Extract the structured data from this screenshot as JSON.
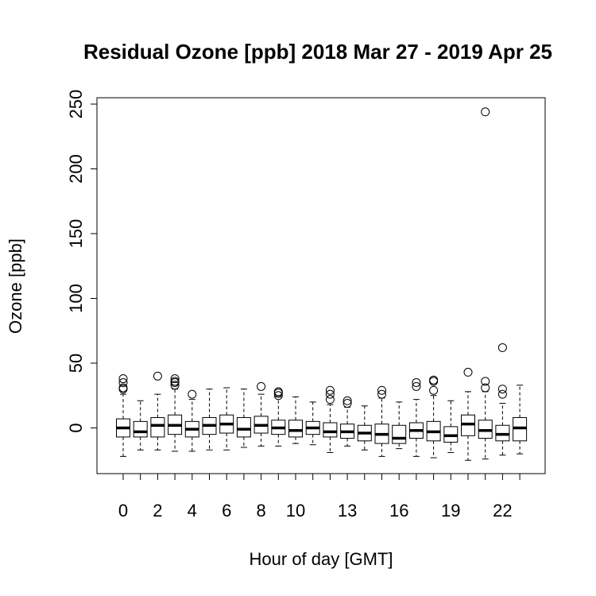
{
  "chart_data": {
    "type": "boxplot",
    "title": "Residual Ozone [ppb] 2018 Mar 27 - 2019 Apr 25",
    "xlabel": "Hour of day [GMT]",
    "ylabel": "Ozone [ppb]",
    "ylim": [
      -35,
      255
    ],
    "yticks": [
      0,
      50,
      100,
      150,
      200,
      250
    ],
    "x_tick_labels": [
      {
        "hour": 0,
        "label": "0"
      },
      {
        "hour": 2,
        "label": "2"
      },
      {
        "hour": 4,
        "label": "4"
      },
      {
        "hour": 6,
        "label": "6"
      },
      {
        "hour": 8,
        "label": "8"
      },
      {
        "hour": 10,
        "label": "10"
      },
      {
        "hour": 13,
        "label": "13"
      },
      {
        "hour": 16,
        "label": "16"
      },
      {
        "hour": 19,
        "label": "19"
      },
      {
        "hour": 22,
        "label": "22"
      }
    ],
    "boxes": [
      {
        "hour": 0,
        "whisker_low": -22,
        "q1": -7,
        "median": 0,
        "q3": 7,
        "whisker_high": 26,
        "outliers": [
          30,
          31,
          35,
          38
        ]
      },
      {
        "hour": 1,
        "whisker_low": -17,
        "q1": -7,
        "median": -3,
        "q3": 5,
        "whisker_high": 21,
        "outliers": []
      },
      {
        "hour": 2,
        "whisker_low": -17,
        "q1": -7,
        "median": 2,
        "q3": 8,
        "whisker_high": 26,
        "outliers": [
          40
        ]
      },
      {
        "hour": 3,
        "whisker_low": -18,
        "q1": -5,
        "median": 2,
        "q3": 10,
        "whisker_high": 30,
        "outliers": [
          33,
          35,
          36,
          38
        ]
      },
      {
        "hour": 4,
        "whisker_low": -18,
        "q1": -7,
        "median": -1,
        "q3": 5,
        "whisker_high": 22,
        "outliers": [
          26
        ]
      },
      {
        "hour": 5,
        "whisker_low": -17,
        "q1": -5,
        "median": 2,
        "q3": 8,
        "whisker_high": 30,
        "outliers": []
      },
      {
        "hour": 6,
        "whisker_low": -17,
        "q1": -4,
        "median": 3,
        "q3": 10,
        "whisker_high": 31,
        "outliers": []
      },
      {
        "hour": 7,
        "whisker_low": -15,
        "q1": -7,
        "median": -1,
        "q3": 8,
        "whisker_high": 30,
        "outliers": []
      },
      {
        "hour": 8,
        "whisker_low": -14,
        "q1": -4,
        "median": 2,
        "q3": 9,
        "whisker_high": 26,
        "outliers": [
          32
        ]
      },
      {
        "hour": 9,
        "whisker_low": -14,
        "q1": -5,
        "median": 0,
        "q3": 6,
        "whisker_high": 24,
        "outliers": [
          25,
          27,
          28
        ]
      },
      {
        "hour": 10,
        "whisker_low": -12,
        "q1": -7,
        "median": -2,
        "q3": 6,
        "whisker_high": 24,
        "outliers": []
      },
      {
        "hour": 11,
        "whisker_low": -13,
        "q1": -5,
        "median": 0,
        "q3": 5,
        "whisker_high": 20,
        "outliers": []
      },
      {
        "hour": 12,
        "whisker_low": -19,
        "q1": -7,
        "median": -3,
        "q3": 4,
        "whisker_high": 18,
        "outliers": [
          22,
          26,
          29
        ]
      },
      {
        "hour": 13,
        "whisker_low": -14,
        "q1": -8,
        "median": -3,
        "q3": 3,
        "whisker_high": 16,
        "outliers": [
          19,
          21
        ]
      },
      {
        "hour": 14,
        "whisker_low": -17,
        "q1": -10,
        "median": -4,
        "q3": 2,
        "whisker_high": 17,
        "outliers": []
      },
      {
        "hour": 15,
        "whisker_low": -22,
        "q1": -12,
        "median": -5,
        "q3": 3,
        "whisker_high": 23,
        "outliers": [
          26,
          29
        ]
      },
      {
        "hour": 16,
        "whisker_low": -16,
        "q1": -12,
        "median": -8,
        "q3": 2,
        "whisker_high": 20,
        "outliers": []
      },
      {
        "hour": 17,
        "whisker_low": -22,
        "q1": -8,
        "median": -2,
        "q3": 4,
        "whisker_high": 22,
        "outliers": [
          32,
          35
        ]
      },
      {
        "hour": 18,
        "whisker_low": -23,
        "q1": -10,
        "median": -3,
        "q3": 5,
        "whisker_high": 25,
        "outliers": [
          29,
          36,
          37
        ]
      },
      {
        "hour": 19,
        "whisker_low": -19,
        "q1": -11,
        "median": -6,
        "q3": 1,
        "whisker_high": 21,
        "outliers": []
      },
      {
        "hour": 20,
        "whisker_low": -25,
        "q1": -6,
        "median": 3,
        "q3": 10,
        "whisker_high": 28,
        "outliers": [
          43
        ]
      },
      {
        "hour": 21,
        "whisker_low": -24,
        "q1": -8,
        "median": -2,
        "q3": 6,
        "whisker_high": 28,
        "outliers": [
          31,
          36,
          244
        ]
      },
      {
        "hour": 22,
        "whisker_low": -21,
        "q1": -10,
        "median": -5,
        "q3": 2,
        "whisker_high": 19,
        "outliers": [
          26,
          30,
          62
        ]
      },
      {
        "hour": 23,
        "whisker_low": -20,
        "q1": -10,
        "median": 0,
        "q3": 8,
        "whisker_high": 33,
        "outliers": []
      }
    ],
    "grid": false,
    "legend": "none",
    "colors": {
      "box_fill": "#ffffff",
      "stroke": "#000000",
      "background": "#ffffff"
    }
  }
}
